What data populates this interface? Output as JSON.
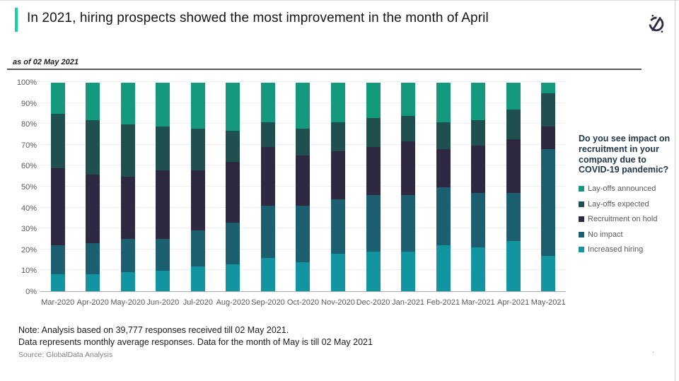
{
  "header": {
    "title": "In 2021, hiring prospects showed the most improvement in the month of April",
    "as_of": "as of 02 May 2021",
    "logo_icon": "globaldata-compass-icon",
    "accent_color": "#0cd6a2"
  },
  "chart_data": {
    "type": "bar",
    "stacked": true,
    "stack_total": 100,
    "title": "Do you see impact on recruitment in your company due to COVID-19 pandemic?",
    "categories": [
      "Mar-2020",
      "Apr-2020",
      "May-2020",
      "Jun-2020",
      "Jul-2020",
      "Aug-2020",
      "Sep-2020",
      "Oct-2020",
      "Nov-2020",
      "Dec-2020",
      "Jan-2021",
      "Feb-2021",
      "Mar-2021",
      "Apr-2021",
      "May-2021"
    ],
    "series": [
      {
        "name": "Increased hiring",
        "color": "#1295a1",
        "values": [
          8,
          8,
          9,
          10,
          12,
          13,
          16,
          14,
          18,
          19,
          19,
          22,
          21,
          24,
          17
        ]
      },
      {
        "name": "No impact",
        "color": "#1c5f70",
        "values": [
          14,
          15,
          16,
          15,
          17,
          20,
          25,
          27,
          26,
          27,
          27,
          28,
          26,
          23,
          51
        ]
      },
      {
        "name": "Recruitment on hold",
        "color": "#2e2940",
        "values": [
          37,
          33,
          30,
          33,
          29,
          29,
          28,
          24,
          23,
          23,
          26,
          18,
          23,
          26,
          11
        ]
      },
      {
        "name": "Lay-offs expected",
        "color": "#1f504f",
        "values": [
          26,
          26,
          25,
          21,
          20,
          15,
          12,
          13,
          14,
          14,
          12,
          13,
          12,
          14,
          16
        ]
      },
      {
        "name": "Lay-offs announced",
        "color": "#14997d",
        "values": [
          15,
          18,
          20,
          21,
          22,
          23,
          19,
          22,
          19,
          17,
          16,
          19,
          18,
          13,
          5
        ]
      }
    ],
    "y_ticks": [
      "0%",
      "10%",
      "20%",
      "30%",
      "40%",
      "50%",
      "60%",
      "70%",
      "80%",
      "90%",
      "100%"
    ],
    "ylim": [
      0,
      100
    ],
    "grid": true,
    "legend_position": "right"
  },
  "legend": {
    "title": "Do you see impact on recruitment in your company due to COVID-19 pandemic?",
    "items": [
      {
        "label": "Lay-offs announced",
        "color": "#14997d"
      },
      {
        "label": "Lay-offs expected",
        "color": "#1f504f"
      },
      {
        "label": "Recruitment on hold",
        "color": "#2e2940"
      },
      {
        "label": "No impact",
        "color": "#1c5f70"
      },
      {
        "label": "Increased hiring",
        "color": "#1295a1"
      }
    ]
  },
  "footer": {
    "note_line1": "Note: Analysis based on 39,777 responses received till 02 May 2021.",
    "note_line2": "Data represents monthly average responses. Data for the month of May is till 02 May 2021",
    "source": "Source: GlobalData Analysis",
    "stray_dot": "."
  }
}
